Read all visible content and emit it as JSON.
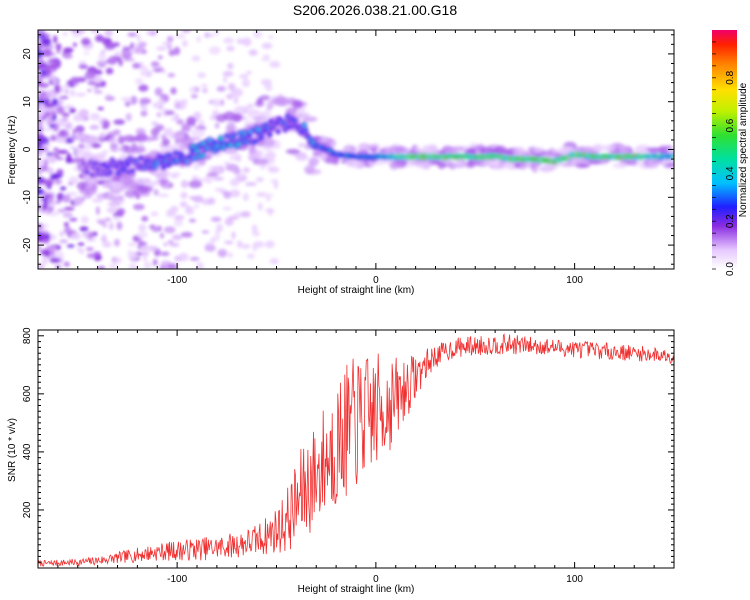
{
  "title": "S206.2026.038.21.00.G18",
  "chart_data": [
    {
      "type": "heatmap",
      "xlabel": "Height of straight line (km)",
      "ylabel": "Frequency (Hz)",
      "xlim": [
        -170,
        150
      ],
      "ylim": [
        -25,
        25
      ],
      "x_ticks": [
        -100,
        0,
        100
      ],
      "y_ticks": [
        -20,
        -10,
        0,
        10,
        20
      ],
      "colorbar": {
        "label": "Normalized spectral amplitude",
        "range": [
          0,
          1
        ],
        "ticks": [
          0.0,
          0.2,
          0.4,
          0.6,
          0.8
        ]
      },
      "ridge": {
        "x": [
          -160,
          -140,
          -120,
          -100,
          -80,
          -60,
          -50,
          -40,
          -30,
          -20,
          -10,
          0,
          10,
          20,
          40,
          60,
          70,
          80,
          90,
          100,
          110,
          120,
          130,
          150
        ],
        "freq": [
          -3,
          -4,
          -3,
          -2,
          1,
          3,
          5,
          6,
          1,
          -1,
          -1.5,
          -1.5,
          -1.5,
          -1.5,
          -1.5,
          -1.5,
          -2,
          -2,
          -2.5,
          -1,
          -1.5,
          -1.5,
          -1.5,
          -1.5
        ],
        "amplitude": [
          0.1,
          0.25,
          0.3,
          0.35,
          0.4,
          0.35,
          0.3,
          0.3,
          0.4,
          0.45,
          0.5,
          0.55,
          0.7,
          0.85,
          0.9,
          0.85,
          0.88,
          0.9,
          0.9,
          0.8,
          0.85,
          0.88,
          0.85,
          0.6
        ]
      }
    },
    {
      "type": "line",
      "xlabel": "Height of straight line (km)",
      "ylabel": "SNR (10 * v/v)",
      "xlim": [
        -170,
        150
      ],
      "ylim": [
        0,
        820
      ],
      "x_ticks": [
        -100,
        0,
        100
      ],
      "y_ticks": [
        200,
        400,
        600,
        800
      ],
      "series": [
        {
          "name": "SNR",
          "color": "#f03030",
          "x": [
            -170,
            -150,
            -140,
            -130,
            -120,
            -110,
            -100,
            -90,
            -80,
            -70,
            -60,
            -50,
            -45,
            -40,
            -35,
            -30,
            -25,
            -20,
            -15,
            -10,
            -5,
            0,
            5,
            10,
            15,
            20,
            25,
            30,
            40,
            50,
            60,
            70,
            80,
            90,
            100,
            110,
            120,
            130,
            140,
            150
          ],
          "y": [
            15,
            20,
            25,
            35,
            45,
            55,
            60,
            65,
            70,
            80,
            95,
            130,
            160,
            220,
            280,
            320,
            380,
            420,
            470,
            500,
            520,
            540,
            560,
            580,
            620,
            660,
            700,
            730,
            760,
            765,
            770,
            770,
            765,
            760,
            755,
            750,
            745,
            740,
            735,
            730
          ],
          "noise": [
            10,
            12,
            15,
            20,
            25,
            30,
            35,
            40,
            40,
            45,
            55,
            80,
            110,
            150,
            180,
            190,
            200,
            220,
            230,
            230,
            220,
            200,
            180,
            150,
            110,
            80,
            55,
            40,
            35,
            35,
            35,
            35,
            30,
            30,
            30,
            30,
            28,
            28,
            26,
            25
          ]
        }
      ]
    }
  ]
}
